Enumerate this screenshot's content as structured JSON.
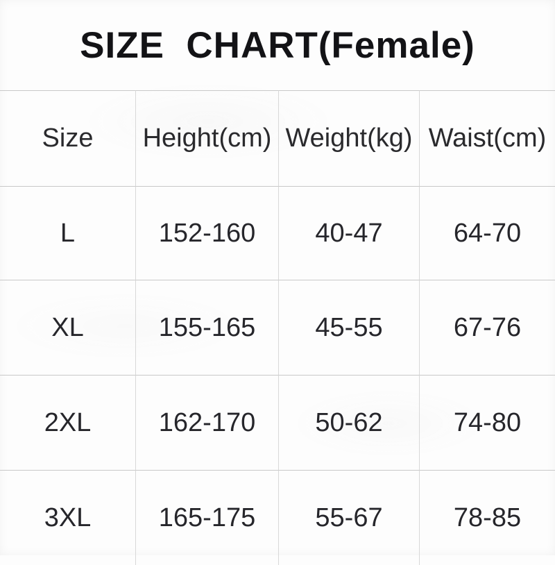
{
  "title": "SIZE  CHART(Female)",
  "chart_data": {
    "type": "table",
    "title": "SIZE  CHART(Female)",
    "columns": [
      "Size",
      "Height(cm)",
      "Weight(kg)",
      "Waist(cm)"
    ],
    "rows": [
      [
        "L",
        "152-160",
        "40-47",
        "64-70"
      ],
      [
        "XL",
        "155-165",
        "45-55",
        "67-76"
      ],
      [
        "2XL",
        "162-170",
        "50-62",
        "74-80"
      ],
      [
        "3XL",
        "165-175",
        "55-67",
        "78-85"
      ]
    ],
    "layout": {
      "gridlines": "horizontal rules full width; internal vertical rules only; no outer side borders; bottom row clipped by image edge"
    }
  },
  "colors": {
    "background": "#fdfdfd",
    "text": "#222226",
    "horizontal_rule": "#c8c8c8",
    "vertical_rule": "#d8d8d8"
  }
}
